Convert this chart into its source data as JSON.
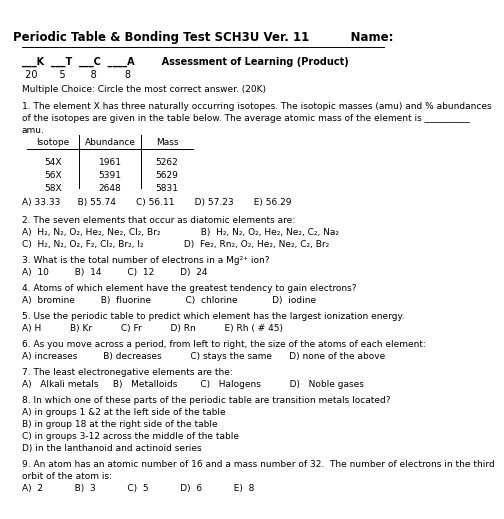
{
  "background_color": "#ffffff",
  "text_color": "#000000",
  "title": "Periodic Table & Bonding Test SCH3U Ver. 11          Name:",
  "scoring_line": "___K  ___T  ___C  ____A        Assessment of Learning (Product)",
  "scoring_nums": " 20       5        8         8",
  "mc_line": "Multiple Choice: Circle the most correct answer. (20K)",
  "q1_line1": "1. The element X has three naturally occurring isotopes. The isotopic masses (amu) and % abundances",
  "q1_line2": "of the isotopes are given in the table below. The average atomic mass of the element is __________",
  "q1_line3": "amu.",
  "table_header": [
    "Isotope",
    "Abundance",
    "Mass"
  ],
  "table_rows": [
    [
      "54X",
      "1961",
      "5262"
    ],
    [
      "56X",
      "5391",
      "5629"
    ],
    [
      "58X",
      "2648",
      "5831"
    ]
  ],
  "q1_ans": "A) 33.33      B) 55.74       C) 56.11       D) 57.23       E) 56.29",
  "q2_stem": "2. The seven elements that occur as diatomic elements are:",
  "q2_a": "A)  H₂, N₂, O₂, He₂, Ne₂, Cl₂, Br₂              B)  H₂, N₂, O₂, He₂, Ne₂, C₂, Na₂",
  "q2_c": "C)  H₂, N₂, O₂, F₂, Cl₂, Br₂, I₂              D)  Fe₂, Rn₂, O₂, He₂, Ne₂, C₂, Br₂",
  "q3_stem": "3. What is the total number of electrons in a Mg²⁺ ion?",
  "q3_ans": "A)  10         B)  14         C)  12         D)  24",
  "q4_stem": "4. Atoms of which element have the greatest tendency to gain electrons?",
  "q4_ans": "A)  bromine         B)  fluorine            C)  chlorine            D)  iodine",
  "q5_stem": "5. Use the periodic table to predict which element has the largest ionization energy.",
  "q5_ans": "A) H          B) Kr          C) Fr          D) Rn          E) Rh ( # 45)",
  "q6_stem": "6. As you move across a period, from left to right, the size of the atoms of each element:",
  "q6_ans": "A) increases         B) decreases          C) stays the same      D) none of the above",
  "q7_stem": "7. The least electronegative elements are the:",
  "q7_ans": "A)   Alkali metals     B)   Metalloids        C)   Halogens          D)   Noble gases",
  "q8_stem": "8. In which one of these parts of the periodic table are transition metals located?",
  "q8_a": "A) in groups 1 &2 at the left side of the table",
  "q8_b": "B) in group 18 at the right side of the table",
  "q8_c": "C) in groups 3-12 across the middle of the table",
  "q8_d": "D) in the lanthanoid and actinoid series",
  "q9_stem": "9. An atom has an atomic number of 16 and a mass number of 32.  The number of electrons in the third",
  "q9_stem2": "orbit of the atom is:",
  "q9_ans": "A)  2           B)  3           C)  5           D)  6           E)  8"
}
